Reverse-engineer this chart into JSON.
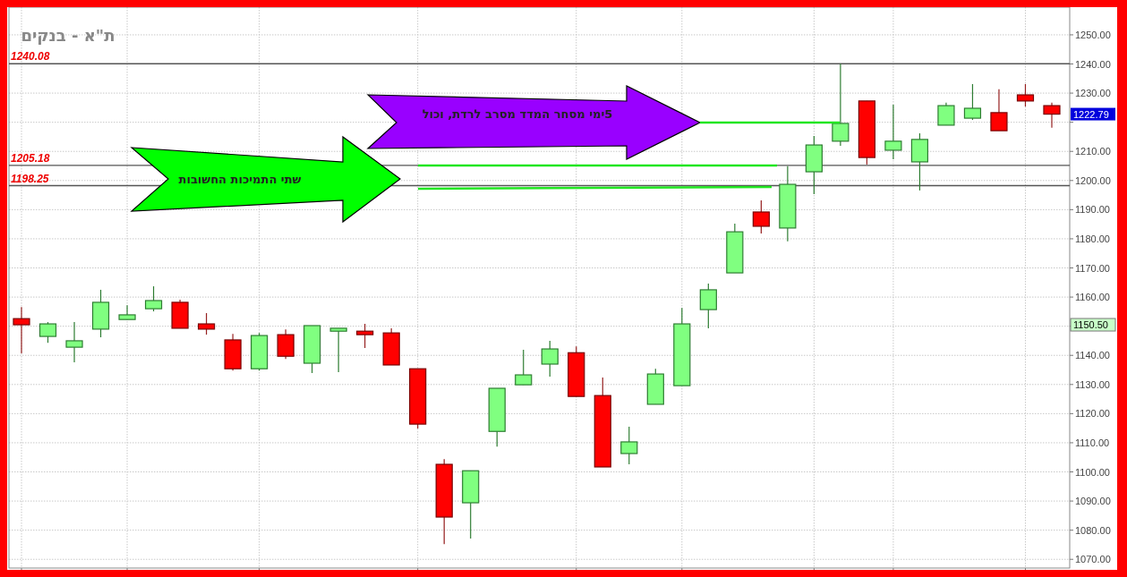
{
  "chart_data": {
    "type": "candlestick",
    "title": "ת\"א - בנקים",
    "annotations": [
      "שתי התמיכות  החשובות",
      "5ימי מסחר המדד  מסרב לרדת, וכול",
      "1222.79",
      "1150.50"
    ],
    "categories": [
      null,
      null,
      null,
      null,
      null,
      null,
      null,
      null,
      null,
      null,
      null,
      null,
      null,
      null,
      null,
      null,
      null,
      null,
      null,
      null,
      null,
      null,
      null,
      null,
      null,
      null,
      null,
      null,
      null,
      null,
      null,
      null,
      null,
      null,
      null,
      null,
      null,
      null,
      null,
      null
    ],
    "ohlc": [
      [
        1152.6,
        1156.6,
        1140.7,
        1150.5
      ],
      [
        1146.5,
        1151.4,
        1144.3,
        1150.8
      ],
      [
        1142.8,
        1151.4,
        1137.6,
        1145.0
      ],
      [
        1149.0,
        1162.5,
        1146.2,
        1158.2
      ],
      [
        1152.3,
        1157.2,
        1152.3,
        1153.9
      ],
      [
        1156.0,
        1163.7,
        1155.1,
        1158.8
      ],
      [
        1158.2,
        1159.1,
        1149.3,
        1149.3
      ],
      [
        1150.8,
        1154.5,
        1147.1,
        1149.0
      ],
      [
        1145.3,
        1147.4,
        1134.8,
        1135.4
      ],
      [
        1135.4,
        1147.7,
        1134.8,
        1146.8
      ],
      [
        1147.1,
        1148.9,
        1138.8,
        1139.7
      ],
      [
        1137.3,
        1150.2,
        1133.9,
        1150.2
      ],
      [
        1148.3,
        1149.3,
        1134.2,
        1149.3
      ],
      [
        1148.3,
        1150.8,
        1142.5,
        1147.1
      ],
      [
        1147.7,
        1149.3,
        1136.7,
        1136.7
      ],
      [
        1135.4,
        1135.4,
        1114.9,
        1116.4
      ],
      [
        1102.6,
        1104.4,
        1075.2,
        1084.5
      ],
      [
        1089.4,
        1100.4,
        1077.1,
        1100.4
      ],
      [
        1113.9,
        1128.7,
        1108.7,
        1128.7
      ],
      [
        1129.9,
        1141.9,
        1129.9,
        1133.3
      ],
      [
        1137.0,
        1145.0,
        1132.7,
        1142.2
      ],
      [
        1140.9,
        1143.1,
        1125.9,
        1125.9
      ],
      [
        1126.2,
        1132.4,
        1101.7,
        1101.7
      ],
      [
        1106.3,
        1115.5,
        1102.6,
        1110.3
      ],
      [
        1123.2,
        1135.4,
        1123.2,
        1133.6
      ],
      [
        1129.6,
        1156.3,
        1129.6,
        1150.8
      ],
      [
        1155.7,
        1164.6,
        1149.3,
        1162.5
      ],
      [
        1168.3,
        1185.2,
        1168.3,
        1182.4
      ],
      [
        1189.2,
        1193.2,
        1181.8,
        1184.3
      ],
      [
        1183.7,
        1204.9,
        1179.1,
        1198.7
      ],
      [
        1203.0,
        1215.3,
        1195.3,
        1212.2
      ],
      [
        1213.5,
        1240.08,
        1211.9,
        1219.6
      ],
      [
        1227.3,
        1227.3,
        1205.5,
        1207.9
      ],
      [
        1210.4,
        1226.0,
        1207.3,
        1213.5
      ],
      [
        1206.4,
        1216.2,
        1196.6,
        1214.1
      ],
      [
        1219.0,
        1226.7,
        1219.0,
        1225.7
      ],
      [
        1221.4,
        1233.1,
        1220.8,
        1224.8
      ],
      [
        1223.3,
        1231.3,
        1217.1,
        1217.1
      ],
      [
        1229.4,
        1233.1,
        1225.4,
        1227.3
      ],
      [
        1225.7,
        1226.7,
        1218.1,
        1222.79
      ]
    ],
    "ylim": [
      1067,
      1259.5
    ],
    "yticks": [
      {
        "value": 1070,
        "label": "1070.00"
      },
      {
        "value": 1080,
        "label": "1080.00"
      },
      {
        "value": 1090,
        "label": "1090.00"
      },
      {
        "value": 1100,
        "label": "1100.00"
      },
      {
        "value": 1110,
        "label": "1110.00"
      },
      {
        "value": 1120,
        "label": "1120.00"
      },
      {
        "value": 1130,
        "label": "1130.00"
      },
      {
        "value": 1140,
        "label": "1140.00"
      },
      {
        "value": 1150,
        "label": null
      },
      {
        "value": 1160,
        "label": "1160.00"
      },
      {
        "value": 1170,
        "label": "1170.00"
      },
      {
        "value": 1180,
        "label": "1180.00"
      },
      {
        "value": 1190,
        "label": "1190.00"
      },
      {
        "value": 1200,
        "label": "1200.00"
      },
      {
        "value": 1210,
        "label": "1210.00"
      },
      {
        "value": 1220,
        "label": null
      },
      {
        "value": 1230,
        "label": "1230.00"
      },
      {
        "value": 1240,
        "label": "1240.00"
      },
      {
        "value": 1250,
        "label": "1250.00"
      }
    ],
    "grid": true,
    "ref_lines": [
      {
        "axis": "y",
        "value": 1240.08,
        "label": "1240.08",
        "color": "#555555"
      },
      {
        "axis": "y",
        "value": 1205.18,
        "label": "1205.18",
        "color": "#555555"
      },
      {
        "axis": "y",
        "value": 1198.25,
        "label": "1198.25",
        "color": "#555555"
      }
    ]
  }
}
